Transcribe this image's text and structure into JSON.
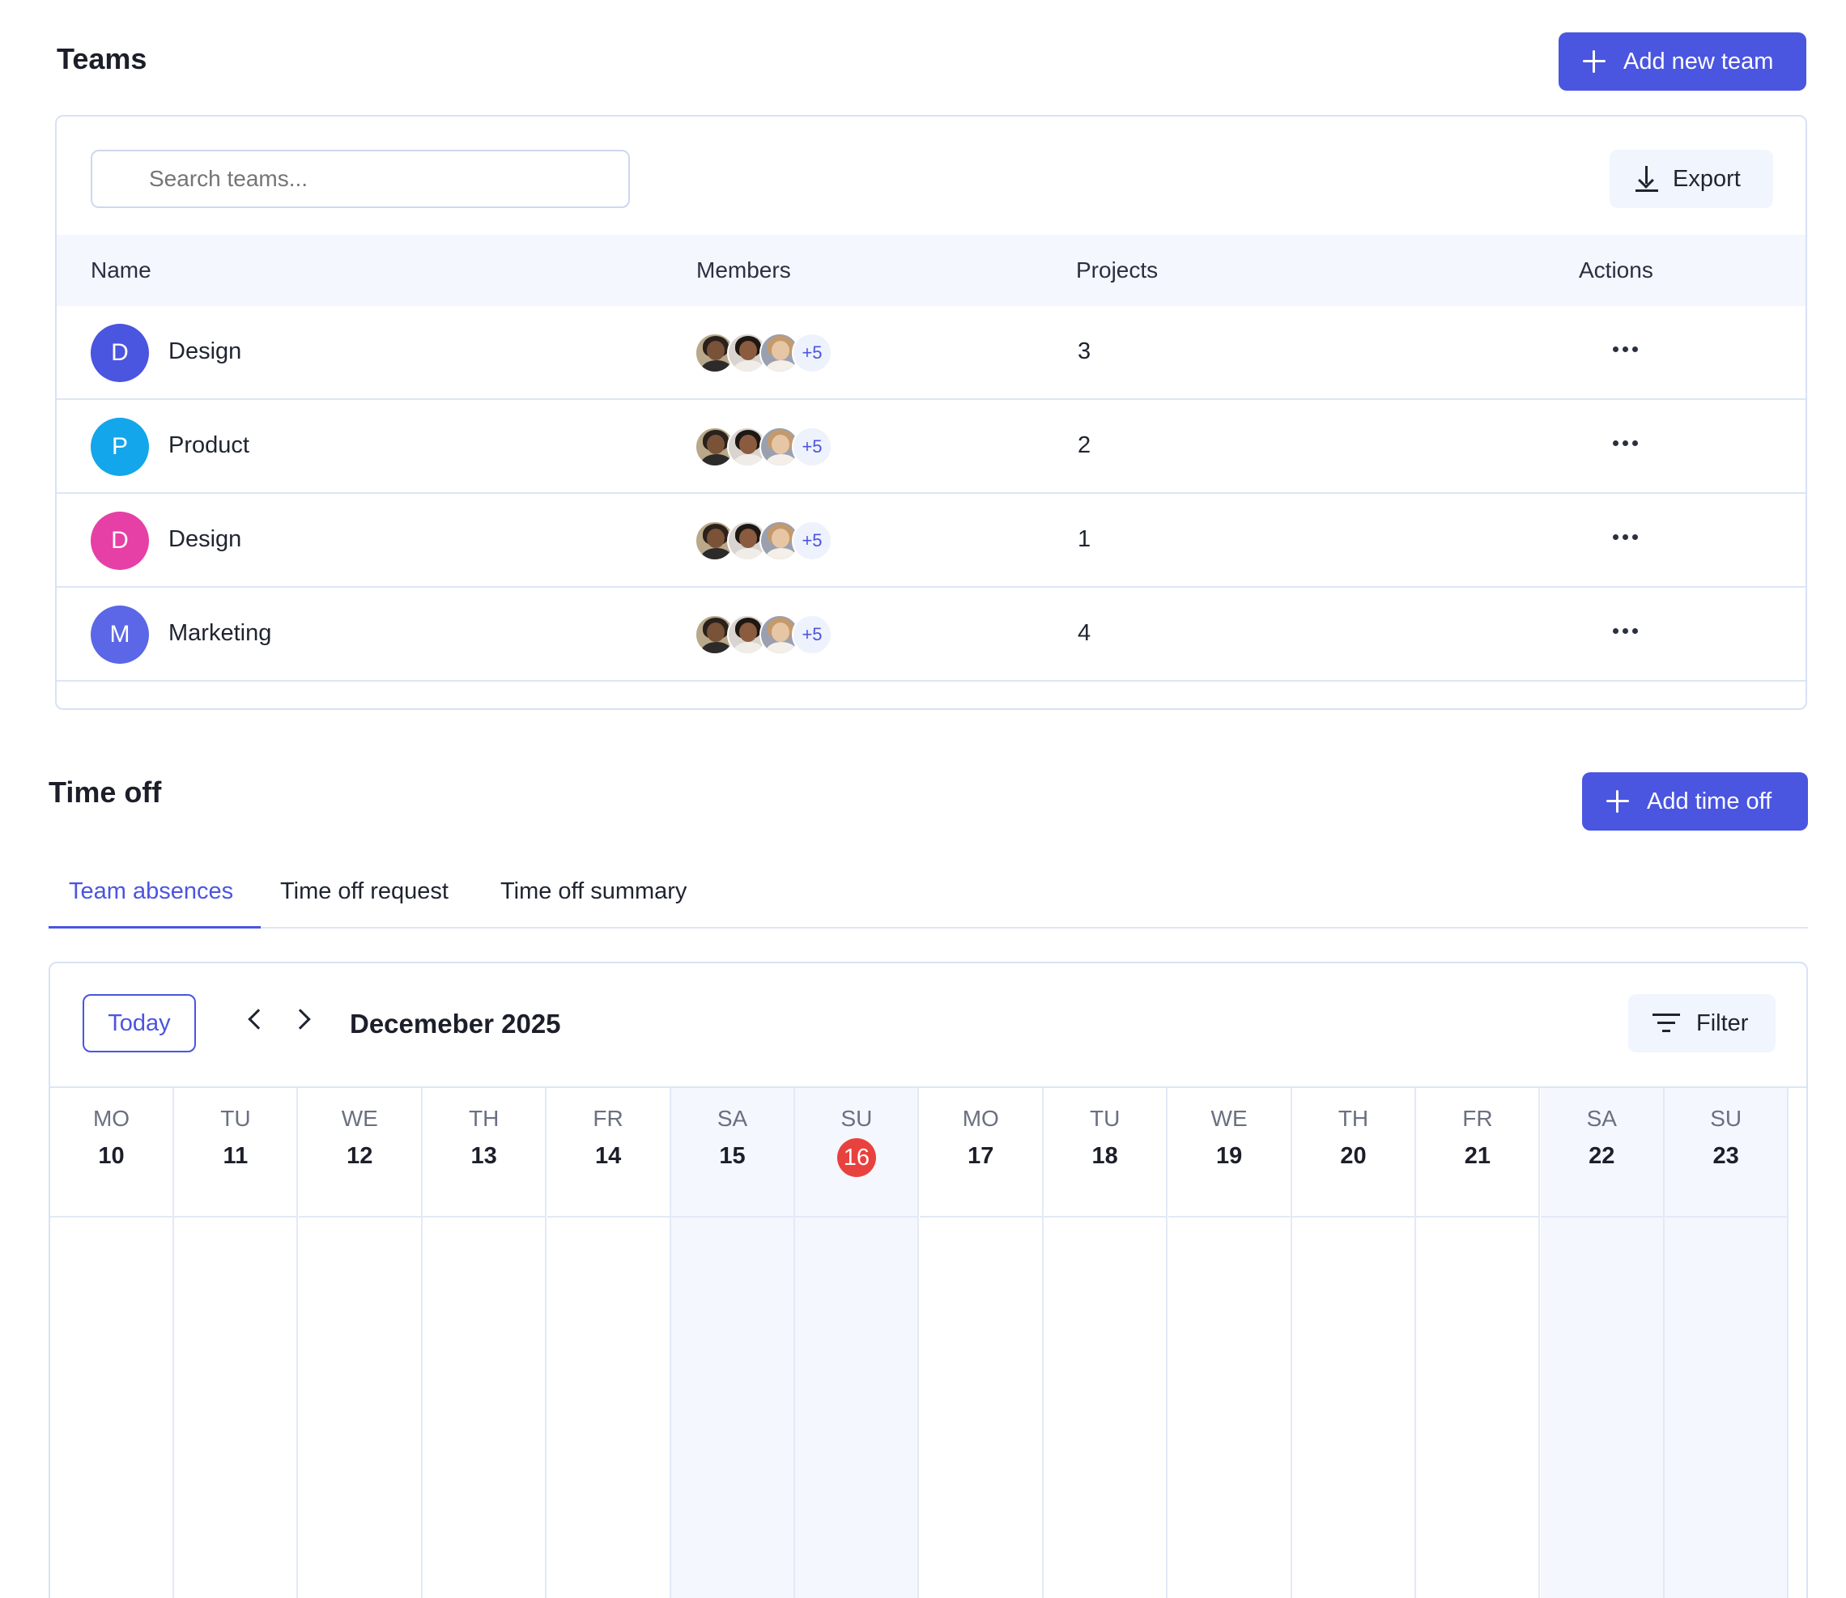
{
  "teams": {
    "title": "Teams",
    "add_button": "Add new team",
    "search_placeholder": "Search teams...",
    "export_label": "Export",
    "columns": {
      "name": "Name",
      "members": "Members",
      "projects": "Projects",
      "actions": "Actions"
    },
    "rows": [
      {
        "initial": "D",
        "name": "Design",
        "avatar_color": "#4a55e0",
        "more_members": "+5",
        "projects": "3"
      },
      {
        "initial": "P",
        "name": "Product",
        "avatar_color": "#13a6ea",
        "more_members": "+5",
        "projects": "2"
      },
      {
        "initial": "D",
        "name": "Design",
        "avatar_color": "#e63fa6",
        "more_members": "+5",
        "projects": "1"
      },
      {
        "initial": "M",
        "name": "Marketing",
        "avatar_color": "#5b67e6",
        "more_members": "+5",
        "projects": "4"
      }
    ]
  },
  "time_off": {
    "title": "Time off",
    "add_button": "Add time off",
    "tabs": [
      "Team absences",
      "Time off request",
      "Time off summary"
    ],
    "active_tab": "Team absences",
    "calendar": {
      "today_label": "Today",
      "month_label": "Decemeber 2025",
      "filter_label": "Filter",
      "days": [
        {
          "abbr": "MO",
          "num": "10"
        },
        {
          "abbr": "TU",
          "num": "11"
        },
        {
          "abbr": "WE",
          "num": "12"
        },
        {
          "abbr": "TH",
          "num": "13"
        },
        {
          "abbr": "FR",
          "num": "14"
        },
        {
          "abbr": "SA",
          "num": "15"
        },
        {
          "abbr": "SU",
          "num": "16"
        },
        {
          "abbr": "MO",
          "num": "17"
        },
        {
          "abbr": "TU",
          "num": "18"
        },
        {
          "abbr": "WE",
          "num": "19"
        },
        {
          "abbr": "TH",
          "num": "20"
        },
        {
          "abbr": "FR",
          "num": "21"
        },
        {
          "abbr": "SA",
          "num": "22"
        },
        {
          "abbr": "SU",
          "num": "23"
        }
      ],
      "today_day": "16"
    }
  },
  "colors": {
    "accent": "#4a55e0",
    "today": "#e8423f",
    "weekend_bg": "#f4f7fe"
  }
}
